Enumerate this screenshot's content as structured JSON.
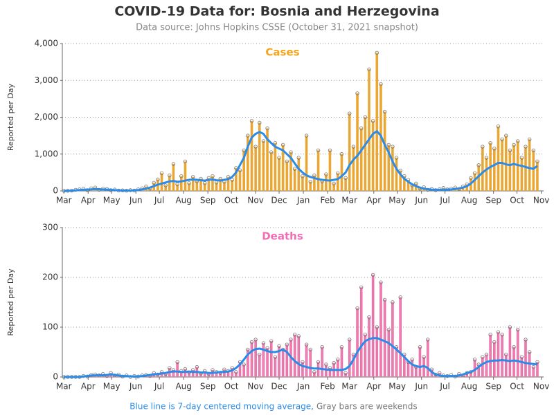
{
  "header": {
    "title": "COVID-19 Data for: Bosnia and Herzegovina",
    "subtitle": "Data source: Johns Hopkins CSSE (October 31, 2021 snapshot)"
  },
  "footer": {
    "line_note": "Blue line is 7-day centered moving average,",
    "bar_note": "Gray bars are weekends"
  },
  "chart_data": [
    {
      "type": "bar",
      "title": "Cases",
      "title_color": "#f5a31a",
      "ylabel": "Reported per Day",
      "bar_color": "#f5a623",
      "dot_color": "#c9a86a",
      "line_color": "#2a8be8",
      "xlim": [
        -2,
        613
      ],
      "ylim": [
        0,
        4000
      ],
      "xticks": [
        {
          "value": 0,
          "label": "Mar"
        },
        {
          "value": 31,
          "label": "Apr"
        },
        {
          "value": 61,
          "label": "May"
        },
        {
          "value": 92,
          "label": "Jun"
        },
        {
          "value": 122,
          "label": "Jul"
        },
        {
          "value": 153,
          "label": "Aug"
        },
        {
          "value": 184,
          "label": "Sep"
        },
        {
          "value": 214,
          "label": "Oct"
        },
        {
          "value": 245,
          "label": "Nov"
        },
        {
          "value": 275,
          "label": "Dec"
        },
        {
          "value": 306,
          "label": "Jan"
        },
        {
          "value": 337,
          "label": "Feb"
        },
        {
          "value": 365,
          "label": "Mar"
        },
        {
          "value": 396,
          "label": "Apr"
        },
        {
          "value": 426,
          "label": "May"
        },
        {
          "value": 457,
          "label": "Jun"
        },
        {
          "value": 487,
          "label": "Jul"
        },
        {
          "value": 518,
          "label": "Aug"
        },
        {
          "value": 549,
          "label": "Sep"
        },
        {
          "value": 579,
          "label": "Oct"
        },
        {
          "value": 610,
          "label": "Nov"
        }
      ],
      "yticks": [
        0,
        {
          "value": 1000,
          "label": "1,000"
        },
        {
          "value": 2000,
          "label": "2,000"
        },
        {
          "value": 3000,
          "label": "3,000"
        },
        {
          "value": 4000,
          "label": "4,000"
        }
      ],
      "grid": true,
      "x": [
        0,
        5,
        10,
        15,
        20,
        25,
        30,
        35,
        40,
        45,
        50,
        55,
        60,
        65,
        70,
        75,
        80,
        85,
        90,
        95,
        100,
        105,
        110,
        115,
        120,
        125,
        130,
        135,
        140,
        145,
        150,
        155,
        160,
        165,
        170,
        175,
        180,
        185,
        190,
        195,
        200,
        205,
        210,
        215,
        220,
        225,
        230,
        235,
        240,
        245,
        250,
        255,
        260,
        265,
        270,
        275,
        280,
        285,
        290,
        295,
        300,
        305,
        310,
        315,
        320,
        325,
        330,
        335,
        340,
        345,
        350,
        355,
        360,
        365,
        370,
        375,
        380,
        385,
        390,
        395,
        400,
        405,
        410,
        415,
        420,
        425,
        430,
        435,
        440,
        445,
        450,
        455,
        460,
        465,
        470,
        475,
        480,
        485,
        490,
        495,
        500,
        505,
        510,
        515,
        520,
        525,
        530,
        535,
        540,
        545,
        550,
        555,
        560,
        565,
        570,
        575,
        580,
        585,
        590,
        595,
        600,
        605
      ],
      "values": [
        0,
        3,
        8,
        30,
        40,
        60,
        20,
        70,
        90,
        30,
        60,
        50,
        20,
        35,
        10,
        15,
        5,
        20,
        10,
        40,
        70,
        120,
        60,
        220,
        310,
        480,
        150,
        420,
        730,
        180,
        400,
        800,
        210,
        380,
        260,
        330,
        210,
        350,
        400,
        230,
        330,
        250,
        380,
        300,
        620,
        560,
        1100,
        1500,
        1900,
        1200,
        1850,
        1350,
        1700,
        1050,
        1300,
        900,
        1250,
        800,
        1050,
        600,
        900,
        400,
        1500,
        250,
        420,
        1100,
        260,
        450,
        1100,
        200,
        480,
        1000,
        350,
        2100,
        1200,
        2650,
        1700,
        2000,
        3300,
        1900,
        3750,
        2900,
        2150,
        1250,
        1200,
        900,
        550,
        400,
        300,
        150,
        200,
        60,
        100,
        30,
        50,
        20,
        45,
        80,
        40,
        60,
        90,
        50,
        120,
        180,
        350,
        480,
        700,
        1200,
        900,
        1300,
        1150,
        1750,
        1400,
        1500,
        1100,
        1250,
        1350,
        900,
        1200,
        1400,
        1100,
        800
      ],
      "moving_average": [
        0,
        2,
        5,
        15,
        25,
        30,
        35,
        40,
        50,
        45,
        40,
        35,
        30,
        20,
        15,
        10,
        10,
        10,
        15,
        25,
        40,
        60,
        90,
        130,
        170,
        200,
        230,
        260,
        270,
        250,
        260,
        280,
        300,
        310,
        300,
        290,
        280,
        300,
        310,
        290,
        280,
        300,
        320,
        380,
        500,
        700,
        900,
        1200,
        1450,
        1550,
        1600,
        1550,
        1400,
        1300,
        1200,
        1150,
        1100,
        1000,
        900,
        750,
        600,
        500,
        420,
        380,
        350,
        320,
        300,
        290,
        280,
        300,
        320,
        400,
        500,
        700,
        850,
        950,
        1100,
        1250,
        1400,
        1550,
        1620,
        1500,
        1250,
        1050,
        800,
        600,
        450,
        330,
        250,
        180,
        130,
        90,
        60,
        45,
        35,
        30,
        30,
        30,
        35,
        40,
        50,
        70,
        90,
        130,
        200,
        300,
        400,
        500,
        580,
        650,
        700,
        760,
        760,
        720,
        700,
        730,
        700,
        680,
        650,
        620,
        600,
        680
      ]
    },
    {
      "type": "bar",
      "title": "Deaths",
      "title_color": "#f06eb4",
      "ylabel": "Reported per Day",
      "bar_color": "#f06aad",
      "dot_color": "#d89aa8",
      "line_color": "#2a8be8",
      "xlim": [
        -2,
        613
      ],
      "ylim": [
        0,
        300
      ],
      "xticks": [
        {
          "value": 0,
          "label": "Mar"
        },
        {
          "value": 31,
          "label": "Apr"
        },
        {
          "value": 61,
          "label": "May"
        },
        {
          "value": 92,
          "label": "Jun"
        },
        {
          "value": 122,
          "label": "Jul"
        },
        {
          "value": 153,
          "label": "Aug"
        },
        {
          "value": 184,
          "label": "Sep"
        },
        {
          "value": 214,
          "label": "Oct"
        },
        {
          "value": 245,
          "label": "Nov"
        },
        {
          "value": 275,
          "label": "Dec"
        },
        {
          "value": 306,
          "label": "Jan"
        },
        {
          "value": 337,
          "label": "Feb"
        },
        {
          "value": 365,
          "label": "Mar"
        },
        {
          "value": 396,
          "label": "Apr"
        },
        {
          "value": 426,
          "label": "May"
        },
        {
          "value": 457,
          "label": "Jun"
        },
        {
          "value": 487,
          "label": "Jul"
        },
        {
          "value": 518,
          "label": "Aug"
        },
        {
          "value": 549,
          "label": "Sep"
        },
        {
          "value": 579,
          "label": "Oct"
        },
        {
          "value": 610,
          "label": "Nov"
        }
      ],
      "yticks": [
        0,
        100,
        200,
        300
      ],
      "grid": true,
      "x": [
        0,
        5,
        10,
        15,
        20,
        25,
        30,
        35,
        40,
        45,
        50,
        55,
        60,
        65,
        70,
        75,
        80,
        85,
        90,
        95,
        100,
        105,
        110,
        115,
        120,
        125,
        130,
        135,
        140,
        145,
        150,
        155,
        160,
        165,
        170,
        175,
        180,
        185,
        190,
        195,
        200,
        205,
        210,
        215,
        220,
        225,
        230,
        235,
        240,
        245,
        250,
        255,
        260,
        265,
        270,
        275,
        280,
        285,
        290,
        295,
        300,
        305,
        310,
        315,
        320,
        325,
        330,
        335,
        340,
        345,
        350,
        355,
        360,
        365,
        370,
        375,
        380,
        385,
        390,
        395,
        400,
        405,
        410,
        415,
        420,
        425,
        430,
        435,
        440,
        445,
        450,
        455,
        460,
        465,
        470,
        475,
        480,
        485,
        490,
        495,
        500,
        505,
        510,
        515,
        520,
        525,
        530,
        535,
        540,
        545,
        550,
        555,
        560,
        565,
        570,
        575,
        580,
        585,
        590,
        595,
        600,
        605
      ],
      "values": [
        0,
        0,
        0,
        0,
        0,
        2,
        1,
        4,
        5,
        3,
        6,
        2,
        8,
        3,
        5,
        1,
        3,
        0,
        2,
        1,
        3,
        4,
        2,
        8,
        5,
        10,
        6,
        18,
        14,
        30,
        12,
        16,
        9,
        14,
        20,
        7,
        12,
        6,
        14,
        10,
        8,
        15,
        12,
        18,
        10,
        30,
        25,
        55,
        70,
        75,
        45,
        68,
        58,
        72,
        40,
        62,
        55,
        65,
        75,
        85,
        82,
        30,
        65,
        55,
        10,
        30,
        60,
        25,
        18,
        28,
        35,
        60,
        8,
        75,
        45,
        138,
        180,
        85,
        120,
        205,
        100,
        190,
        155,
        95,
        150,
        60,
        160,
        45,
        30,
        35,
        20,
        60,
        40,
        75,
        15,
        5,
        8,
        3,
        2,
        4,
        1,
        6,
        3,
        8,
        10,
        35,
        25,
        40,
        45,
        85,
        70,
        90,
        85,
        45,
        100,
        60,
        95,
        40,
        75,
        50,
        20,
        30
      ],
      "moving_average": [
        0,
        0,
        0,
        0,
        0,
        1,
        2,
        3,
        3,
        4,
        3,
        4,
        5,
        4,
        3,
        2,
        2,
        1,
        1,
        1,
        2,
        3,
        4,
        5,
        6,
        7,
        8,
        10,
        11,
        11,
        10,
        10,
        11,
        10,
        10,
        9,
        9,
        8,
        8,
        9,
        10,
        10,
        11,
        13,
        18,
        25,
        35,
        45,
        52,
        56,
        57,
        55,
        52,
        50,
        50,
        52,
        55,
        50,
        40,
        32,
        26,
        22,
        20,
        18,
        17,
        17,
        16,
        15,
        14,
        14,
        14,
        14,
        16,
        22,
        35,
        50,
        62,
        72,
        76,
        78,
        78,
        75,
        72,
        68,
        62,
        55,
        48,
        40,
        32,
        25,
        22,
        20,
        22,
        18,
        10,
        5,
        3,
        2,
        2,
        2,
        2,
        3,
        5,
        8,
        10,
        14,
        20,
        26,
        30,
        32,
        33,
        33,
        34,
        33,
        32,
        33,
        32,
        30,
        28,
        27,
        26,
        25
      ]
    }
  ]
}
